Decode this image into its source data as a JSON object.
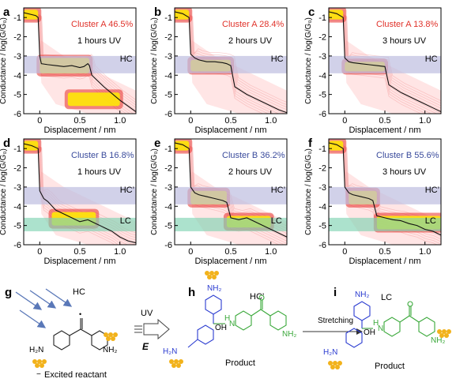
{
  "figure": {
    "panels": [
      {
        "letter": "a",
        "cluster": "Cluster A",
        "pct": "46.5%",
        "hours": "1 hours",
        "uv": "UV",
        "cluster_color": "#e0322a",
        "band_label": "HC"
      },
      {
        "letter": "b",
        "cluster": "Cluster A",
        "pct": "28.4%",
        "hours": "2 hours",
        "uv": "UV",
        "cluster_color": "#e0322a",
        "band_label": "HC"
      },
      {
        "letter": "c",
        "cluster": "Cluster A",
        "pct": "13.8%",
        "hours": "3 hours",
        "uv": "UV",
        "cluster_color": "#e0322a",
        "band_label": "HC"
      },
      {
        "letter": "d",
        "cluster": "Cluster B",
        "pct": "16.8%",
        "hours": "1 hours",
        "uv": "UV",
        "cluster_color": "#3a4b9c",
        "band_label": "HC’",
        "band2_label": "LC"
      },
      {
        "letter": "e",
        "cluster": "Cluster B",
        "pct": "36.2%",
        "hours": "2 hours",
        "uv": "UV",
        "cluster_color": "#3a4b9c",
        "band_label": "HC’",
        "band2_label": "LC"
      },
      {
        "letter": "f",
        "cluster": "Cluster B",
        "pct": "55.6%",
        "hours": "3 hours",
        "uv": "UV",
        "cluster_color": "#3a4b9c",
        "band_label": "HC’",
        "band2_label": "LC"
      }
    ],
    "y_label": "Conductance / log(G/G₀)",
    "x_label": "Displacement / nm",
    "x_ticks": [
      "0",
      "0.5",
      "1.0"
    ],
    "y_ticks": [
      "-1",
      "-2",
      "-3",
      "-4",
      "-5",
      "-6"
    ],
    "colors": {
      "hc_band": "#bdbde0",
      "lc_band": "#7fd3b2",
      "trace": "#111111",
      "heat_hot": "#ffee00",
      "heat_mid": "#e8302a",
      "heat_low": "#ffd2d2"
    }
  },
  "scheme": {
    "g": {
      "letter": "g",
      "state": "HC",
      "nh2_left": "H₂N",
      "nh2_right": "NH₂",
      "radical": "•",
      "caption": "Excited reactant",
      "minus": "−"
    },
    "arrow_uv": {
      "uv": "UV",
      "field": "E"
    },
    "h": {
      "letter": "h",
      "state": "HC’",
      "nh2_top": "NH₂",
      "nh2_left": "H₂N",
      "nh2_right": "NH₂",
      "oh": "OH",
      "nh": "N",
      "h": "H",
      "caption": "Product"
    },
    "arrow_stretch": {
      "label": "Stretching"
    },
    "i": {
      "letter": "i",
      "state": "LC",
      "nh2_top": "NH₂",
      "nh2_left": "H₂N",
      "nh2_right": "NH₂",
      "oh": "OH",
      "nh": "N",
      "h": "H",
      "caption": "Product"
    }
  },
  "chart_data": [
    {
      "type": "heatmap",
      "panel": "a",
      "title": "Cluster A 46.5% 1 hours UV",
      "xlabel": "Displacement / nm",
      "ylabel": "Conductance / log(G/G₀)",
      "xlim": [
        -0.2,
        1.2
      ],
      "ylim": [
        -6,
        -0.5
      ],
      "bands": [
        {
          "label": "HC",
          "range": [
            -3.9,
            -3.0
          ]
        }
      ],
      "trace": {
        "x": [
          -0.2,
          -0.1,
          -0.05,
          -0.02,
          0.0,
          0.02,
          0.1,
          0.2,
          0.3,
          0.4,
          0.5,
          0.55,
          0.6,
          0.62,
          0.65,
          0.8,
          1.0,
          1.2
        ],
        "y": [
          -0.75,
          -0.85,
          -0.9,
          -1.0,
          -3.0,
          -3.4,
          -3.45,
          -3.5,
          -3.55,
          -3.5,
          -3.6,
          -3.55,
          -3.4,
          -3.5,
          -4.0,
          -4.6,
          -5.3,
          -5.9
        ]
      }
    },
    {
      "type": "heatmap",
      "panel": "b",
      "title": "Cluster A 28.4% 2 hours UV",
      "xlabel": "Displacement / nm",
      "ylabel": "Conductance / log(G/G₀)",
      "xlim": [
        -0.2,
        1.2
      ],
      "ylim": [
        -6,
        -0.5
      ],
      "bands": [
        {
          "label": "HC",
          "range": [
            -3.9,
            -3.0
          ]
        }
      ],
      "trace": {
        "x": [
          -0.2,
          -0.1,
          -0.02,
          0.0,
          0.05,
          0.1,
          0.2,
          0.3,
          0.4,
          0.45,
          0.5,
          0.55,
          0.7,
          0.9,
          1.1,
          1.2
        ],
        "y": [
          -0.7,
          -0.8,
          -1.0,
          -2.9,
          -3.1,
          -3.2,
          -3.3,
          -3.3,
          -3.35,
          -3.4,
          -3.5,
          -4.6,
          -5.0,
          -5.4,
          -5.8,
          -5.95
        ]
      }
    },
    {
      "type": "heatmap",
      "panel": "c",
      "title": "Cluster A 13.8% 3 hours UV",
      "xlabel": "Displacement / nm",
      "ylabel": "Conductance / log(G/G₀)",
      "xlim": [
        -0.2,
        1.2
      ],
      "ylim": [
        -6,
        -0.5
      ],
      "bands": [
        {
          "label": "HC",
          "range": [
            -3.9,
            -3.0
          ]
        }
      ],
      "trace": {
        "x": [
          -0.2,
          -0.1,
          -0.02,
          0.0,
          0.05,
          0.1,
          0.2,
          0.3,
          0.4,
          0.5,
          0.55,
          0.7,
          0.9,
          1.1,
          1.2
        ],
        "y": [
          -0.7,
          -0.8,
          -1.0,
          -3.1,
          -3.3,
          -3.35,
          -3.4,
          -3.45,
          -3.5,
          -3.55,
          -4.5,
          -4.9,
          -5.3,
          -5.7,
          -5.9
        ]
      }
    },
    {
      "type": "heatmap",
      "panel": "d",
      "title": "Cluster B 16.8% 1 hours UV",
      "xlabel": "Displacement / nm",
      "ylabel": "Conductance / log(G/G₀)",
      "xlim": [
        -0.2,
        1.2
      ],
      "ylim": [
        -6,
        -0.5
      ],
      "bands": [
        {
          "label": "HC’",
          "range": [
            -3.9,
            -3.0
          ]
        },
        {
          "label": "LC",
          "range": [
            -5.3,
            -4.6
          ]
        }
      ],
      "trace": {
        "x": [
          -0.2,
          -0.1,
          -0.02,
          0.0,
          0.05,
          0.1,
          0.2,
          0.3,
          0.4,
          0.5,
          0.6,
          0.7,
          0.8,
          0.9,
          1.0,
          1.1,
          1.2
        ],
        "y": [
          -0.75,
          -0.85,
          -1.0,
          -3.2,
          -3.6,
          -3.75,
          -4.2,
          -4.4,
          -4.6,
          -4.8,
          -4.7,
          -4.9,
          -5.1,
          -5.3,
          -5.6,
          -5.8,
          -5.9
        ]
      }
    },
    {
      "type": "heatmap",
      "panel": "e",
      "title": "Cluster B 36.2% 2 hours UV",
      "xlabel": "Displacement / nm",
      "ylabel": "Conductance / log(G/G₀)",
      "xlim": [
        -0.2,
        1.2
      ],
      "ylim": [
        -6,
        -0.5
      ],
      "bands": [
        {
          "label": "HC’",
          "range": [
            -3.9,
            -3.0
          ]
        },
        {
          "label": "LC",
          "range": [
            -5.3,
            -4.6
          ]
        }
      ],
      "trace": {
        "x": [
          -0.2,
          -0.1,
          -0.02,
          0.0,
          0.05,
          0.1,
          0.2,
          0.3,
          0.4,
          0.45,
          0.5,
          0.6,
          0.7,
          0.8,
          0.9,
          1.0,
          1.1,
          1.2
        ],
        "y": [
          -0.7,
          -0.8,
          -1.0,
          -3.0,
          -3.3,
          -3.4,
          -3.5,
          -3.6,
          -3.7,
          -3.8,
          -4.6,
          -4.7,
          -4.6,
          -4.8,
          -5.0,
          -5.2,
          -5.4,
          -5.6
        ]
      }
    },
    {
      "type": "heatmap",
      "panel": "f",
      "title": "Cluster B 55.6% 3 hours UV",
      "xlabel": "Displacement / nm",
      "ylabel": "Conductance / log(G/G₀)",
      "xlim": [
        -0.2,
        1.2
      ],
      "ylim": [
        -6,
        -0.5
      ],
      "bands": [
        {
          "label": "HC’",
          "range": [
            -3.9,
            -3.0
          ]
        },
        {
          "label": "LC",
          "range": [
            -5.3,
            -4.6
          ]
        }
      ],
      "trace": {
        "x": [
          -0.2,
          -0.1,
          -0.02,
          0.0,
          0.05,
          0.1,
          0.2,
          0.3,
          0.35,
          0.4,
          0.5,
          0.6,
          0.7,
          0.8,
          0.9,
          1.0,
          1.1,
          1.2
        ],
        "y": [
          -0.7,
          -0.8,
          -1.0,
          -3.0,
          -3.3,
          -3.4,
          -3.5,
          -3.6,
          -3.7,
          -4.5,
          -4.6,
          -4.7,
          -4.75,
          -4.9,
          -5.0,
          -5.2,
          -5.3,
          -5.5
        ]
      }
    }
  ]
}
